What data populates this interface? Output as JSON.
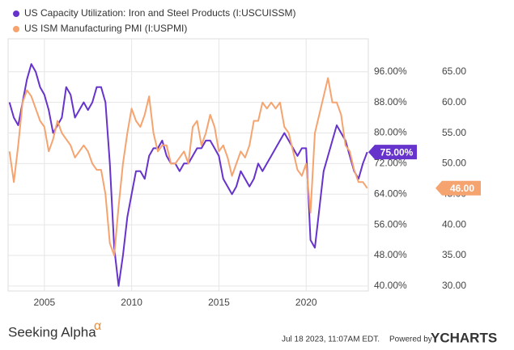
{
  "chart_data": {
    "type": "line",
    "x": [
      2003,
      2003.25,
      2003.5,
      2003.75,
      2004,
      2004.25,
      2004.5,
      2004.75,
      2005,
      2005.25,
      2005.5,
      2005.75,
      2006,
      2006.25,
      2006.5,
      2006.75,
      2007,
      2007.25,
      2007.5,
      2007.75,
      2008,
      2008.25,
      2008.5,
      2008.75,
      2009,
      2009.25,
      2009.5,
      2009.75,
      2010,
      2010.25,
      2010.5,
      2010.75,
      2011,
      2011.25,
      2011.5,
      2011.75,
      2012,
      2012.25,
      2012.5,
      2012.75,
      2013,
      2013.25,
      2013.5,
      2013.75,
      2014,
      2014.25,
      2014.5,
      2014.75,
      2015,
      2015.25,
      2015.5,
      2015.75,
      2016,
      2016.25,
      2016.5,
      2016.75,
      2017,
      2017.25,
      2017.5,
      2017.75,
      2018,
      2018.25,
      2018.5,
      2018.75,
      2019,
      2019.25,
      2019.5,
      2019.75,
      2020,
      2020.25,
      2020.5,
      2020.75,
      2021,
      2021.25,
      2021.5,
      2021.75,
      2022,
      2022.25,
      2022.5,
      2022.75,
      2023,
      2023.25,
      2023.5
    ],
    "series": [
      {
        "name": "US Capacity Utilization: Iron and Steel Products (I:USCUISSM)",
        "color": "#6633cc",
        "axis": "y",
        "end_label": "75.00%",
        "values": [
          88,
          84,
          82,
          88,
          94,
          98,
          96,
          92,
          90,
          86,
          80,
          82,
          84,
          92,
          90,
          84,
          86,
          88,
          86,
          88,
          92,
          92,
          88,
          72,
          50,
          40,
          48,
          58,
          64,
          70,
          70,
          68,
          74,
          76,
          76,
          78,
          74,
          72,
          72,
          70,
          72,
          72,
          74,
          76,
          76,
          78,
          78,
          76,
          74,
          68,
          66,
          64,
          66,
          70,
          68,
          66,
          68,
          72,
          70,
          72,
          74,
          76,
          78,
          80,
          78,
          76,
          74,
          76,
          76,
          52,
          50,
          60,
          70,
          74,
          78,
          82,
          80,
          78,
          74,
          70,
          68,
          72,
          75
        ]
      },
      {
        "name": "US ISM Manufacturing PMI (I:USPMI)",
        "color": "#f5a470",
        "axis": "y2",
        "end_label": "46.00",
        "values": [
          52,
          47,
          53,
          60,
          62,
          61,
          59,
          57,
          56,
          52,
          54,
          57,
          55,
          54,
          53,
          51,
          52,
          53,
          52,
          50,
          49,
          49,
          45,
          37,
          35,
          43,
          50,
          55,
          59,
          57,
          56,
          58,
          61,
          55,
          52,
          53,
          53,
          50,
          50,
          51,
          52,
          50,
          56,
          57,
          53,
          55,
          58,
          56,
          52,
          53,
          51,
          48,
          50,
          52,
          51,
          53,
          57,
          57,
          60,
          59,
          60,
          59,
          60,
          56,
          55,
          52,
          49,
          48,
          50,
          42,
          55,
          58,
          61,
          64,
          60,
          60,
          58,
          53,
          52,
          49,
          47,
          47,
          46
        ]
      }
    ],
    "xlim": [
      2002.92,
      2023.56
    ],
    "xticks": [
      2005,
      2010,
      2015,
      2020
    ],
    "ylim": [
      38.7,
      104.6
    ],
    "yticks": [
      {
        "value": 40,
        "label": "40.00%"
      },
      {
        "value": 48,
        "label": "48.00%"
      },
      {
        "value": 56,
        "label": "56.00%"
      },
      {
        "value": 64,
        "label": "64.00%"
      },
      {
        "value": 72,
        "label": "72.00%"
      },
      {
        "value": 80,
        "label": "80.00%"
      },
      {
        "value": 88,
        "label": "88.00%"
      },
      {
        "value": 96,
        "label": "96.00%"
      }
    ],
    "y2lim": [
      29.2,
      70.4
    ],
    "y2ticks": [
      {
        "value": 30,
        "label": "30.00"
      },
      {
        "value": 35,
        "label": "35.00"
      },
      {
        "value": 40,
        "label": "40.00"
      },
      {
        "value": 45,
        "label": "45.00"
      },
      {
        "value": 50,
        "label": "50.00"
      },
      {
        "value": 55,
        "label": "55.00"
      },
      {
        "value": 60,
        "label": "60.00"
      },
      {
        "value": 65,
        "label": "65.00"
      }
    ],
    "grid": true
  },
  "footer": {
    "brand": "Seeking Alpha",
    "symbol": "α",
    "timestamp": "Jul 18 2023, 11:07AM EDT.",
    "powered": "Powered by",
    "logo": "YCHARTS"
  }
}
